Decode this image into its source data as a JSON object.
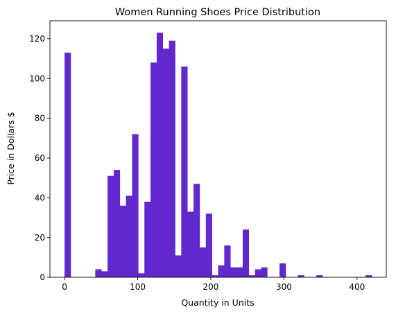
{
  "chart_data": {
    "type": "bar",
    "title": "Women Running Shoes Price Distribution",
    "xlabel": "Quantity in Units",
    "ylabel": "Price in Dollars $",
    "xlim": [
      -20,
      440
    ],
    "ylim": [
      0,
      129
    ],
    "xticks": [
      0,
      100,
      200,
      300,
      400
    ],
    "yticks": [
      0,
      20,
      40,
      60,
      80,
      100,
      120
    ],
    "bin_width": 8.4,
    "bar_color": "#6128cd",
    "grid": false,
    "bins": [
      {
        "x": 0.0,
        "value": 113
      },
      {
        "x": 42.0,
        "value": 4
      },
      {
        "x": 50.4,
        "value": 3
      },
      {
        "x": 58.8,
        "value": 51
      },
      {
        "x": 67.2,
        "value": 54
      },
      {
        "x": 75.6,
        "value": 36
      },
      {
        "x": 84.0,
        "value": 41
      },
      {
        "x": 92.4,
        "value": 72
      },
      {
        "x": 100.8,
        "value": 2
      },
      {
        "x": 109.2,
        "value": 38
      },
      {
        "x": 117.6,
        "value": 108
      },
      {
        "x": 126.0,
        "value": 123
      },
      {
        "x": 134.4,
        "value": 115
      },
      {
        "x": 142.8,
        "value": 119
      },
      {
        "x": 151.2,
        "value": 11
      },
      {
        "x": 159.6,
        "value": 106
      },
      {
        "x": 168.0,
        "value": 33
      },
      {
        "x": 176.4,
        "value": 47
      },
      {
        "x": 184.8,
        "value": 15
      },
      {
        "x": 193.2,
        "value": 32
      },
      {
        "x": 201.6,
        "value": 1
      },
      {
        "x": 210.0,
        "value": 6
      },
      {
        "x": 218.4,
        "value": 16
      },
      {
        "x": 226.8,
        "value": 5
      },
      {
        "x": 235.2,
        "value": 5
      },
      {
        "x": 243.6,
        "value": 24
      },
      {
        "x": 252.0,
        "value": 1
      },
      {
        "x": 260.4,
        "value": 4
      },
      {
        "x": 268.8,
        "value": 5
      },
      {
        "x": 294.0,
        "value": 7
      },
      {
        "x": 319.2,
        "value": 1
      },
      {
        "x": 344.4,
        "value": 1
      },
      {
        "x": 411.6,
        "value": 1
      }
    ]
  }
}
